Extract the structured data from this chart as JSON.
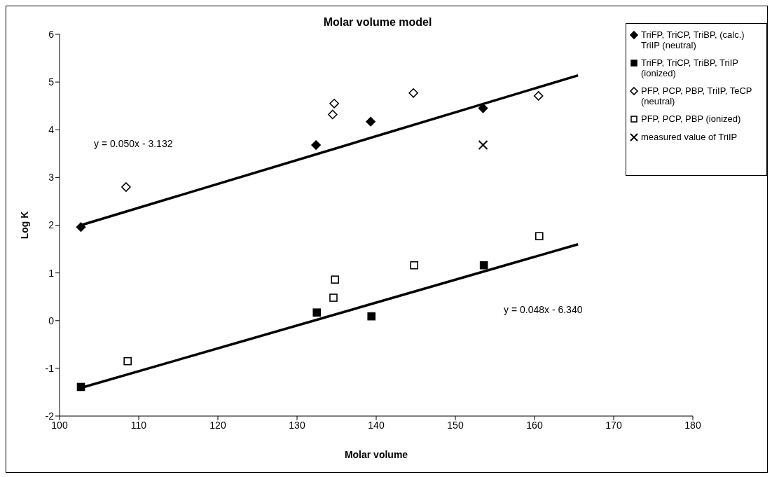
{
  "chart_data": {
    "type": "scatter",
    "title": "Molar volume model",
    "xlabel": "Molar volume",
    "ylabel": "Log K",
    "xlim": [
      100,
      180
    ],
    "xticks": [
      100,
      110,
      120,
      130,
      140,
      150,
      160,
      170,
      180
    ],
    "ylim": [
      -2,
      6
    ],
    "yticks": [
      -2,
      -1,
      0,
      1,
      2,
      3,
      4,
      5,
      6
    ],
    "legend": "right",
    "annotations": [
      "y = 0.050x - 3.132",
      "y = 0.048x - 6.340"
    ],
    "series": [
      {
        "name": "TriFP, TriCP, TriBP, (calc.) TriIP  (neutral)",
        "color": "#000000",
        "marker": "diamond",
        "x": [
          102.7,
          132.4,
          139.3,
          153.5
        ],
        "values": [
          1.96,
          3.68,
          4.17,
          4.45
        ]
      },
      {
        "name": "TriFP, TriCP, TriBP, TriIP (ionized)",
        "color": "#000000",
        "marker": "square",
        "x": [
          102.7,
          132.5,
          139.4,
          153.6
        ],
        "values": [
          -1.39,
          0.17,
          0.09,
          1.16
        ]
      },
      {
        "name": "PFP, PCP, PBP, TriIP, TeCP (neutral)",
        "color": "#ffffff",
        "marker": "diamond",
        "x": [
          108.4,
          134.5,
          134.7,
          144.7,
          160.5
        ],
        "values": [
          2.8,
          4.32,
          4.55,
          4.77,
          4.71
        ]
      },
      {
        "name": "PFP, PCP, PBP (ionized)",
        "color": "#ffffff",
        "marker": "square",
        "x": [
          108.6,
          134.6,
          134.8,
          144.8,
          160.6
        ],
        "values": [
          -0.85,
          0.48,
          0.86,
          1.16,
          1.77
        ]
      },
      {
        "name": "measured value of TriIP",
        "color": "#000000",
        "marker": "cross",
        "x": [
          153.5
        ],
        "values": [
          3.68
        ]
      },
      {
        "type": "line",
        "color": "#000000",
        "x": [
          102.7,
          165.5
        ],
        "values": [
          2.0,
          5.14
        ]
      },
      {
        "type": "line",
        "color": "#000000",
        "x": [
          102.7,
          165.5
        ],
        "values": [
          -1.41,
          1.6
        ]
      }
    ]
  }
}
